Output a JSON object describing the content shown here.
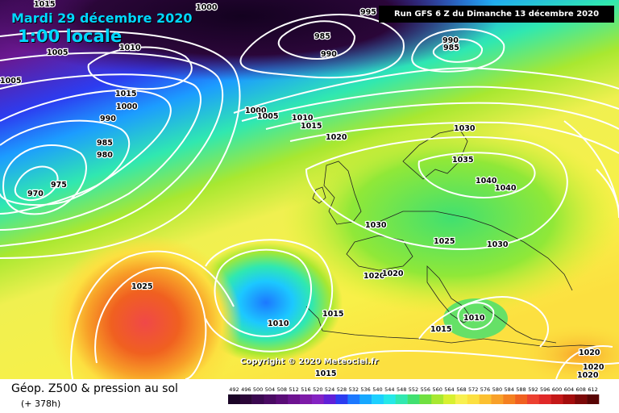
{
  "header": {
    "date": "Mardi 29 décembre 2020",
    "local_time": "1:00 locale",
    "run_info": "Run GFS 6 Z du Dimanche 13 décembre 2020"
  },
  "copyright": "Copyright © 2020 Meteociel.fr",
  "footer": {
    "title": "Géop. Z500 & pression au sol",
    "lead_time": "(+ 378h)"
  },
  "legend": {
    "labels": [
      "492",
      "496",
      "500",
      "504",
      "508",
      "512",
      "516",
      "520",
      "524",
      "528",
      "532",
      "536",
      "540",
      "544",
      "548",
      "552",
      "556",
      "560",
      "564",
      "568",
      "572",
      "576",
      "580",
      "584",
      "588",
      "592",
      "596",
      "600",
      "604",
      "608",
      "612"
    ],
    "colors": [
      "#1a0426",
      "#2b0638",
      "#3a0850",
      "#4a0a63",
      "#5a0c77",
      "#6d1290",
      "#7d1aa8",
      "#8422c2",
      "#6020d8",
      "#2c3cf0",
      "#1c78ff",
      "#16a8ff",
      "#1cd0ff",
      "#24e8e8",
      "#30e8b0",
      "#40e070",
      "#70e040",
      "#a8e830",
      "#d8f030",
      "#f8f050",
      "#fce040",
      "#fcc030",
      "#f8a028",
      "#f48020",
      "#f06020",
      "#ec4030",
      "#e02828",
      "#c41818",
      "#a40c0c",
      "#7c0808",
      "#580404"
    ]
  },
  "isobar_labels": [
    "1015",
    "1000",
    "995",
    "1005",
    "1010",
    "985",
    "990",
    "990",
    "985",
    "1005",
    "1015",
    "1000",
    "990",
    "985",
    "980",
    "975",
    "970",
    "1000",
    "1005",
    "1010",
    "1015",
    "1020",
    "1030",
    "1035",
    "1040",
    "1040",
    "1030",
    "1025",
    "1030",
    "1020",
    "1020",
    "1025",
    "1015",
    "1010",
    "1010",
    "1015",
    "1015",
    "1020",
    "1020",
    "1020"
  ]
}
